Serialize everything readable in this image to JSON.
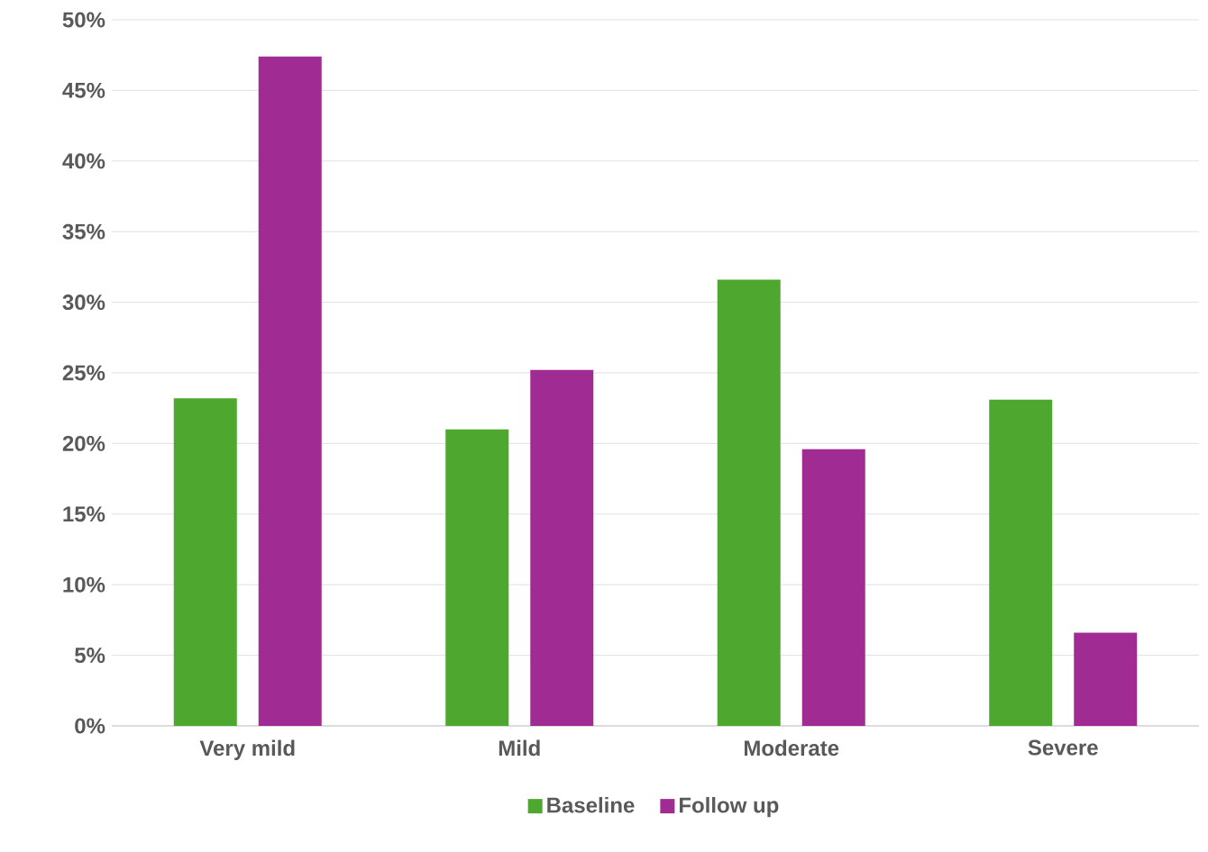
{
  "chart_data": {
    "type": "bar",
    "categories": [
      "Very mild",
      "Mild",
      "Moderate",
      "Severe"
    ],
    "series": [
      {
        "name": "Baseline",
        "color": "#4ea72e",
        "values": [
          23.2,
          21.0,
          31.6,
          23.1
        ]
      },
      {
        "name": "Follow up",
        "color": "#a02b93",
        "values": [
          47.4,
          25.2,
          19.6,
          6.6
        ]
      }
    ],
    "ylim": [
      0,
      50
    ],
    "yticks": [
      {
        "value": 0,
        "label": "0%"
      },
      {
        "value": 5,
        "label": "5%"
      },
      {
        "value": 10,
        "label": "10%"
      },
      {
        "value": 15,
        "label": "15%"
      },
      {
        "value": 20,
        "label": "20%"
      },
      {
        "value": 25,
        "label": "25%"
      },
      {
        "value": 30,
        "label": "30%"
      },
      {
        "value": 35,
        "label": "35%"
      },
      {
        "value": 40,
        "label": "40%"
      },
      {
        "value": 45,
        "label": "45%"
      },
      {
        "value": 50,
        "label": "50%"
      }
    ],
    "grid": "y",
    "legend": "bottom"
  }
}
